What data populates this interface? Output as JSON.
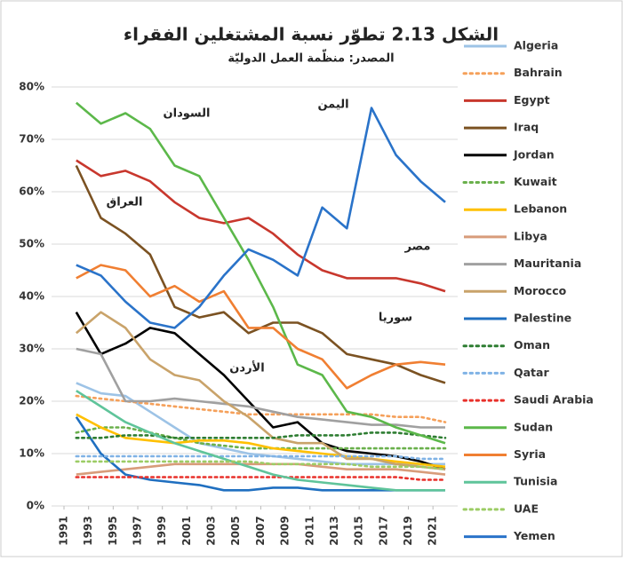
{
  "chart_data": {
    "type": "line",
    "title": "الشكل 2.13  تطوّر نسبة المشتغلين الفقراء",
    "subtitle": "المصدر: منظّمة العمل الدوليّة",
    "annotations": [
      "السودان",
      "اليمن",
      "العراق",
      "مصر",
      "سوريا",
      "الأردن"
    ],
    "x": [
      1992,
      1994,
      1996,
      1998,
      2000,
      2002,
      2004,
      2006,
      2008,
      2010,
      2012,
      2014,
      2016,
      2018,
      2020,
      2022
    ],
    "xlim": [
      1991,
      2022
    ],
    "xticks": [
      1991,
      1993,
      1995,
      1997,
      1999,
      2001,
      2003,
      2005,
      2007,
      2009,
      2011,
      2013,
      2015,
      2017,
      2019,
      2021
    ],
    "ylim": [
      0,
      80
    ],
    "yticks": [
      {
        "value": 0,
        "label": "0%"
      },
      {
        "value": 10,
        "label": "10%"
      },
      {
        "value": 20,
        "label": "20%"
      },
      {
        "value": 30,
        "label": "30%"
      },
      {
        "value": 40,
        "label": "40%"
      },
      {
        "value": 50,
        "label": "50%"
      },
      {
        "value": 60,
        "label": "60%"
      },
      {
        "value": 70,
        "label": "70%"
      },
      {
        "value": 80,
        "label": "80%"
      }
    ],
    "grid": true,
    "legend": "right",
    "series": [
      {
        "name": "Algeria",
        "color": "#9dc3e6",
        "style": "solid",
        "values": [
          23.5,
          21.5,
          21,
          18,
          15,
          12,
          11,
          10,
          9.5,
          9,
          8.5,
          8,
          8,
          8,
          8,
          8
        ]
      },
      {
        "name": "Bahrain",
        "color": "#f5a05a",
        "style": "dotted",
        "values": [
          21,
          20.5,
          20,
          19.5,
          19,
          18.5,
          18,
          17.5,
          17.5,
          17.5,
          17.5,
          17.5,
          17.5,
          17,
          17,
          16
        ]
      },
      {
        "name": "Egypt",
        "color": "#c8372d",
        "style": "solid",
        "values": [
          66,
          63,
          64,
          62,
          58,
          55,
          54,
          55,
          52,
          48,
          45,
          43.5,
          43.5,
          43.5,
          42.5,
          41
        ]
      },
      {
        "name": "Iraq",
        "color": "#7b5222",
        "style": "solid",
        "values": [
          65,
          55,
          52,
          48,
          38,
          36,
          37,
          33,
          35,
          35,
          33,
          29,
          28,
          27,
          25,
          23.5
        ]
      },
      {
        "name": "Jordan",
        "color": "#000000",
        "style": "solid",
        "values": [
          37,
          29,
          31,
          34,
          33,
          29,
          25,
          20,
          15,
          16,
          12,
          10.5,
          10,
          9.5,
          8.5,
          7
        ]
      },
      {
        "name": "Kuwait",
        "color": "#6ab04c",
        "style": "dotted",
        "values": [
          14,
          15,
          15,
          14,
          13,
          12,
          11.5,
          11,
          11,
          11,
          11,
          11,
          11,
          11,
          11,
          11
        ]
      },
      {
        "name": "Lebanon",
        "color": "#ffc000",
        "style": "solid",
        "values": [
          17.5,
          15,
          13,
          12.5,
          12,
          12.5,
          12.5,
          12,
          11,
          10.5,
          10,
          9.5,
          9,
          8.5,
          8,
          7.5
        ]
      },
      {
        "name": "Libya",
        "color": "#d89c7a",
        "style": "solid",
        "values": [
          6,
          6.5,
          7,
          7.5,
          8,
          8,
          8,
          8,
          8,
          8,
          7.5,
          7,
          7,
          7,
          6.5,
          6
        ]
      },
      {
        "name": "Mauritania",
        "color": "#a0a0a0",
        "style": "solid",
        "values": [
          30,
          29,
          20,
          20,
          20.5,
          20,
          19.5,
          19,
          18,
          17,
          16.5,
          16,
          15.5,
          15.5,
          15,
          15
        ]
      },
      {
        "name": "Morocco",
        "color": "#c9a36a",
        "style": "solid",
        "values": [
          33,
          37,
          34,
          28,
          25,
          24,
          20,
          17,
          13,
          12,
          12,
          9,
          9,
          8,
          7.5,
          7
        ]
      },
      {
        "name": "Palestine",
        "color": "#1f6fc0",
        "style": "solid",
        "values": [
          17,
          10,
          6,
          5,
          4.5,
          4,
          3,
          3,
          3.5,
          3.5,
          3,
          3,
          3,
          3,
          3,
          3
        ]
      },
      {
        "name": "Oman",
        "color": "#2e7d32",
        "style": "dotted",
        "values": [
          13,
          13,
          13.5,
          13.5,
          13,
          13,
          13,
          13,
          13,
          13.5,
          13.5,
          13.5,
          14,
          14,
          13.5,
          13
        ]
      },
      {
        "name": "Qatar",
        "color": "#7fb2e5",
        "style": "dotted",
        "values": [
          9.5,
          9.5,
          9.5,
          9.5,
          9.5,
          9.5,
          9.5,
          9.5,
          9.5,
          9.5,
          9.5,
          9.5,
          9.5,
          9.5,
          9,
          9
        ]
      },
      {
        "name": "Saudi Arabia",
        "color": "#e8302a",
        "style": "dotted",
        "values": [
          5.5,
          5.5,
          5.5,
          5.5,
          5.5,
          5.5,
          5.5,
          5.5,
          5.5,
          5.5,
          5.5,
          5.5,
          5.5,
          5.5,
          5,
          5
        ]
      },
      {
        "name": "Sudan",
        "color": "#5cb84a",
        "style": "solid",
        "values": [
          77,
          73,
          75,
          72,
          65,
          63,
          55,
          47,
          38,
          27,
          25,
          18,
          17,
          15,
          13.5,
          12
        ]
      },
      {
        "name": "Syria",
        "color": "#f07f32",
        "style": "solid",
        "values": [
          43.5,
          46,
          45,
          40,
          42,
          39,
          41,
          34,
          34,
          30,
          28,
          22.5,
          25,
          27,
          27.5,
          27
        ]
      },
      {
        "name": "Tunisia",
        "color": "#5fc49a",
        "style": "solid",
        "values": [
          22,
          19,
          16,
          14,
          12,
          10.5,
          9,
          7.5,
          6,
          5,
          4.5,
          4,
          3.5,
          3,
          3,
          3
        ]
      },
      {
        "name": "UAE",
        "color": "#9ccc65",
        "style": "dotted",
        "values": [
          8.5,
          8.5,
          8.5,
          8.5,
          8.5,
          8.5,
          8.5,
          8.5,
          8,
          8,
          8,
          8,
          7.5,
          7.5,
          7.5,
          7
        ]
      },
      {
        "name": "Yemen",
        "color": "#2a73c9",
        "style": "solid",
        "values": [
          46,
          44,
          39,
          35,
          34,
          38,
          44,
          49,
          47,
          44,
          57,
          53,
          76,
          67,
          62,
          58
        ]
      }
    ]
  }
}
